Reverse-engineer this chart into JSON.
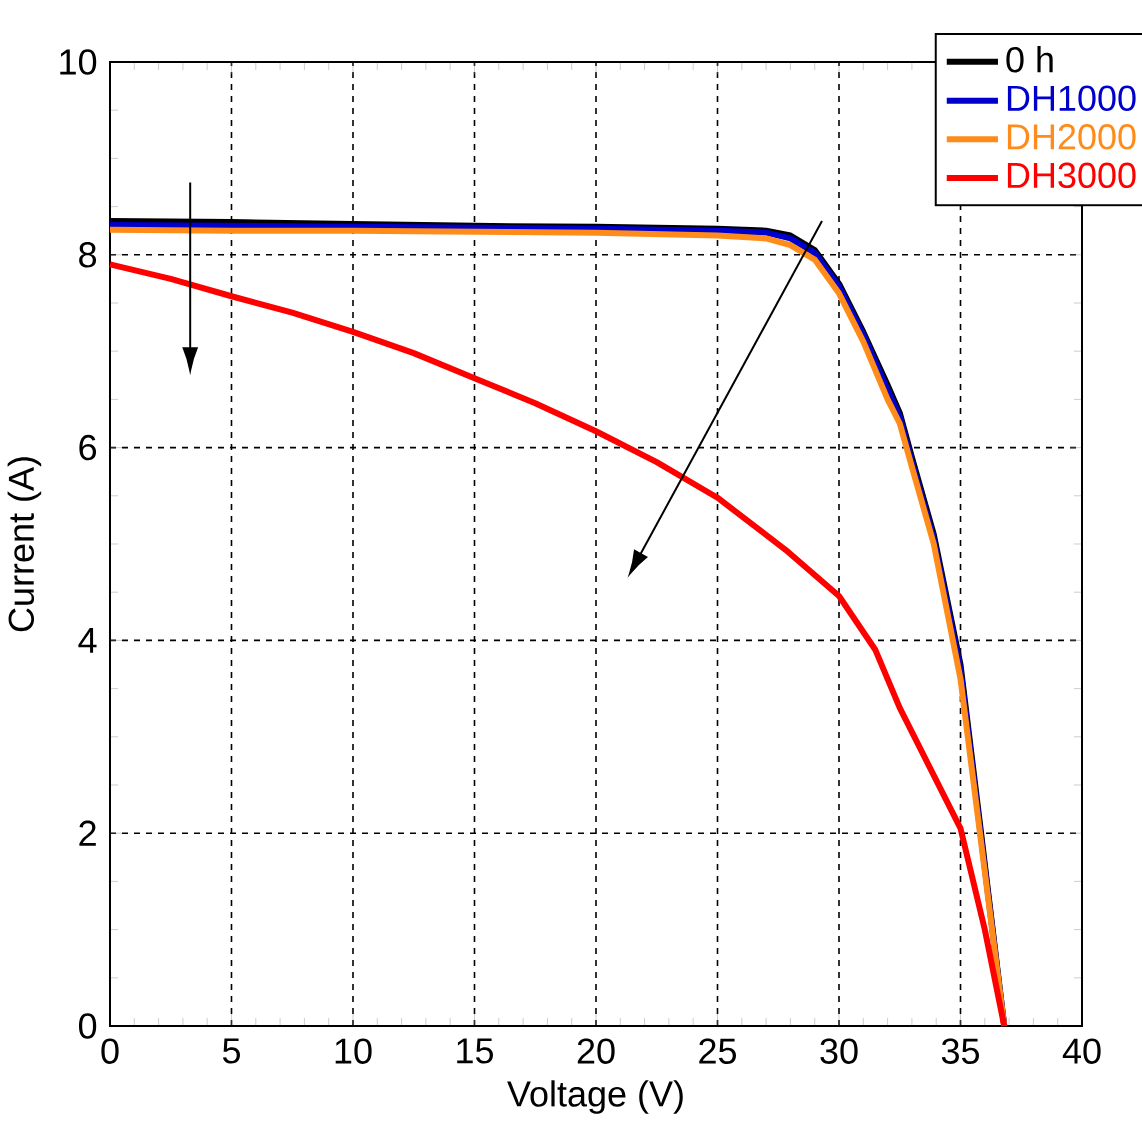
{
  "chart_data": {
    "type": "line",
    "xlabel": "Voltage (V)",
    "ylabel": "Current (A)",
    "xlim": [
      0,
      40
    ],
    "xticks": [
      0,
      5,
      10,
      15,
      20,
      25,
      30,
      35,
      40
    ],
    "ylim": [
      0,
      10
    ],
    "yticks": [
      0,
      2,
      4,
      6,
      8,
      10
    ],
    "grid": true,
    "legend": "top right",
    "marker": "none",
    "line_style": "solid",
    "series": [
      {
        "name": "0 h",
        "color": "#000000",
        "x": [
          0,
          5,
          10,
          15,
          20,
          25,
          27,
          28,
          29,
          30,
          31,
          32,
          32.5,
          33,
          33.9,
          35,
          35.8,
          36.8
        ],
        "values": [
          8.35,
          8.34,
          8.32,
          8.3,
          8.29,
          8.27,
          8.25,
          8.2,
          8.05,
          7.7,
          7.2,
          6.65,
          6.36,
          5.9,
          5.1,
          3.75,
          2.1,
          0
        ]
      },
      {
        "name": "DH1000",
        "color": "#0000cc",
        "x": [
          0,
          5,
          10,
          15,
          20,
          25,
          27,
          28,
          29,
          30,
          31,
          32,
          32.5,
          33,
          33.9,
          35,
          35.8,
          36.8
        ],
        "values": [
          8.31,
          8.3,
          8.29,
          8.28,
          8.27,
          8.25,
          8.23,
          8.17,
          8.02,
          7.67,
          7.17,
          6.6,
          6.32,
          5.85,
          5.05,
          3.7,
          2.05,
          0
        ]
      },
      {
        "name": "DH2000",
        "color": "#ff8c1a",
        "x": [
          0,
          5,
          10,
          15,
          20,
          25,
          27,
          28,
          29,
          30,
          31,
          32,
          32.5,
          33,
          33.9,
          35,
          35.8,
          36.8
        ],
        "values": [
          8.26,
          8.25,
          8.25,
          8.24,
          8.23,
          8.2,
          8.17,
          8.1,
          7.95,
          7.6,
          7.1,
          6.5,
          6.25,
          5.8,
          5.0,
          3.6,
          2.0,
          0
        ]
      },
      {
        "name": "DH3000",
        "color": "#ff0000",
        "x": [
          0,
          2.5,
          5,
          7.5,
          10,
          12.5,
          15,
          17.5,
          20,
          22.5,
          25,
          27.8,
          30,
          31.5,
          32.5,
          33.9,
          35,
          36,
          36.8
        ],
        "values": [
          7.9,
          7.75,
          7.57,
          7.4,
          7.2,
          6.98,
          6.72,
          6.46,
          6.17,
          5.85,
          5.48,
          4.94,
          4.46,
          3.9,
          3.3,
          2.6,
          2.05,
          1.0,
          0
        ]
      }
    ]
  }
}
